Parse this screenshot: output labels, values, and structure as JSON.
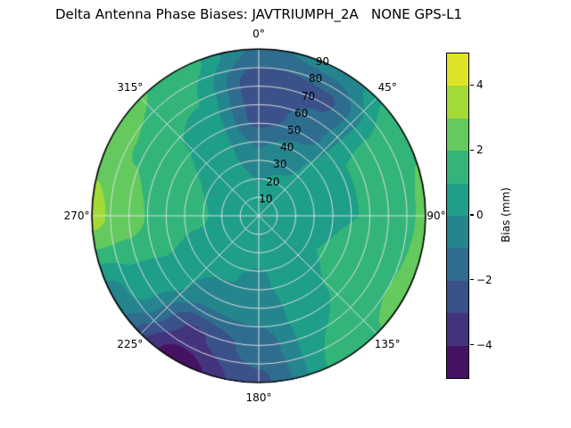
{
  "chart_data": {
    "type": "heatmap",
    "projection": "polar",
    "title": "Delta Antenna Phase Biases: JAVTRIUMPH_2A   NONE GPS-L1",
    "colorbar_label": "Bias (mm)",
    "colormap": "viridis",
    "vmin": -5,
    "vmax": 5,
    "levels": [
      -5,
      -4,
      -3,
      -2,
      -1,
      0,
      1,
      2,
      3,
      4,
      5
    ],
    "colorbar_ticks": [
      "−4",
      "−2",
      "0",
      "2",
      "4"
    ],
    "colorbar_tick_values": [
      -4,
      -2,
      0,
      2,
      4
    ],
    "theta_tick_labels": [
      "0°",
      "45°",
      "90°",
      "135°",
      "180°",
      "225°",
      "270°",
      "315°"
    ],
    "theta_tick_values": [
      0,
      45,
      90,
      135,
      180,
      225,
      270,
      315
    ],
    "theta_zero_location": "top",
    "theta_direction": "clockwise",
    "r_tick_labels": [
      "10",
      "20",
      "30",
      "40",
      "50",
      "60",
      "70",
      "80",
      "90"
    ],
    "r_tick_values": [
      10,
      20,
      30,
      40,
      50,
      60,
      70,
      80,
      90
    ],
    "r_max": 90,
    "r_label_angle_deg": 22.5,
    "grid": true,
    "azimuth_deg": [
      0,
      30,
      60,
      90,
      120,
      150,
      180,
      210,
      240,
      270,
      300,
      330,
      360
    ],
    "radius_frac": [
      0,
      0.2,
      0.4,
      0.6,
      0.8,
      1.0
    ],
    "values_units": "mm",
    "values": [
      [
        0.4,
        0.4,
        0.4,
        0.4,
        0.4,
        0.4,
        0.4,
        0.4,
        0.4,
        0.4,
        0.4,
        0.4,
        0.4
      ],
      [
        0.0,
        0.2,
        0.5,
        0.7,
        0.7,
        0.5,
        0.3,
        0.4,
        0.5,
        0.8,
        0.7,
        0.4,
        0.0
      ],
      [
        -1.0,
        -0.4,
        0.8,
        0.9,
        1.0,
        0.6,
        -0.2,
        0.1,
        0.7,
        1.2,
        1.0,
        0.3,
        -1.0
      ],
      [
        -2.4,
        -1.6,
        1.0,
        1.0,
        1.3,
        0.8,
        -0.8,
        -0.9,
        0.9,
        1.7,
        1.3,
        0.6,
        -2.4
      ],
      [
        -2.7,
        -2.2,
        1.3,
        1.3,
        1.7,
        1.0,
        -1.6,
        -3.2,
        0.6,
        2.5,
        1.9,
        1.1,
        -2.7
      ],
      [
        -1.2,
        -0.6,
        1.9,
        2.2,
        2.4,
        1.3,
        -2.2,
        -4.6,
        -0.5,
        3.3,
        2.5,
        1.7,
        -1.2
      ]
    ],
    "viridis_stops": [
      [
        0.0,
        "#440154"
      ],
      [
        0.11,
        "#482878"
      ],
      [
        0.22,
        "#3e4989"
      ],
      [
        0.33,
        "#31688e"
      ],
      [
        0.44,
        "#26828e"
      ],
      [
        0.55,
        "#1f9e89"
      ],
      [
        0.66,
        "#35b779"
      ],
      [
        0.77,
        "#6ece58"
      ],
      [
        0.88,
        "#b5de2b"
      ],
      [
        1.0,
        "#fde725"
      ]
    ],
    "grid_color": "#e2e2e2",
    "outline_color": "#000000",
    "background_color": "#ffffff"
  }
}
